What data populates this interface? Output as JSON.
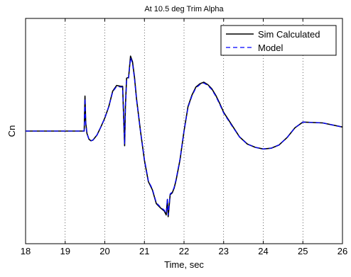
{
  "chart_data": {
    "type": "line",
    "title": "At 10.5 deg Trim Alpha",
    "xlabel": "Time, sec",
    "ylabel": "Cn",
    "xlim": [
      18,
      26
    ],
    "x_ticks": [
      18,
      19,
      20,
      21,
      22,
      23,
      24,
      25,
      26
    ],
    "x_tick_labels": [
      "18",
      "19",
      "20",
      "21",
      "22",
      "23",
      "24",
      "25",
      "26"
    ],
    "ylim": [
      -1,
      1
    ],
    "y_tick_labels": [],
    "grid": {
      "x": true,
      "y": false,
      "style": "dotted"
    },
    "legend": {
      "position": "top-right",
      "entries": [
        "Sim Calculated",
        "Model"
      ]
    },
    "series": [
      {
        "name": "Sim Calculated",
        "color": "#000000",
        "dash": "solid",
        "x": [
          18,
          19.48,
          19.5,
          19.52,
          19.55,
          19.6,
          19.65,
          19.7,
          19.8,
          19.9,
          20.0,
          20.1,
          20.2,
          20.3,
          20.4,
          20.45,
          20.48,
          20.5,
          20.52,
          20.55,
          20.6,
          20.65,
          20.7,
          20.75,
          20.8,
          20.9,
          21.0,
          21.1,
          21.2,
          21.3,
          21.4,
          21.5,
          21.55,
          21.58,
          21.6,
          21.62,
          21.65,
          21.7,
          21.75,
          21.8,
          21.9,
          22.0,
          22.1,
          22.2,
          22.3,
          22.4,
          22.5,
          22.6,
          22.7,
          22.8,
          22.9,
          23.0,
          23.2,
          23.4,
          23.6,
          23.8,
          24.0,
          24.2,
          24.4,
          24.6,
          24.8,
          25.0,
          25.5,
          26.0
        ],
        "y": [
          0.0,
          0.0,
          0.43,
          0.1,
          -0.03,
          -0.1,
          -0.12,
          -0.11,
          -0.05,
          0.05,
          0.16,
          0.3,
          0.49,
          0.56,
          0.55,
          0.55,
          0.1,
          -0.18,
          0.3,
          0.65,
          0.66,
          0.92,
          0.85,
          0.66,
          0.4,
          0.0,
          -0.36,
          -0.62,
          -0.72,
          -0.89,
          -0.94,
          -0.98,
          -1.03,
          -0.84,
          -1.05,
          -0.95,
          -0.78,
          -0.76,
          -0.7,
          -0.6,
          -0.35,
          0.0,
          0.3,
          0.44,
          0.54,
          0.58,
          0.6,
          0.57,
          0.52,
          0.44,
          0.34,
          0.23,
          0.08,
          -0.07,
          -0.16,
          -0.2,
          -0.22,
          -0.21,
          -0.17,
          -0.08,
          0.04,
          0.11,
          0.1,
          0.05
        ]
      },
      {
        "name": "Model",
        "color": "#0000ff",
        "dash": "dashed",
        "x": [
          18,
          19.48,
          19.5,
          19.52,
          19.55,
          19.6,
          19.65,
          19.7,
          19.8,
          19.9,
          20.0,
          20.1,
          20.2,
          20.3,
          20.4,
          20.45,
          20.48,
          20.5,
          20.52,
          20.55,
          20.6,
          20.65,
          20.7,
          20.75,
          20.8,
          20.9,
          21.0,
          21.1,
          21.2,
          21.3,
          21.4,
          21.5,
          21.55,
          21.58,
          21.6,
          21.62,
          21.65,
          21.7,
          21.75,
          21.8,
          21.9,
          22.0,
          22.1,
          22.2,
          22.3,
          22.4,
          22.5,
          22.6,
          22.7,
          22.8,
          22.9,
          23.0,
          23.2,
          23.4,
          23.6,
          23.8,
          24.0,
          24.2,
          24.4,
          24.6,
          24.8,
          25.0,
          25.5,
          26.0
        ],
        "y": [
          0.0,
          0.0,
          0.4,
          0.09,
          -0.03,
          -0.1,
          -0.12,
          -0.11,
          -0.05,
          0.05,
          0.16,
          0.3,
          0.48,
          0.55,
          0.54,
          0.54,
          0.09,
          -0.16,
          0.28,
          0.63,
          0.65,
          0.9,
          0.83,
          0.64,
          0.39,
          0.0,
          -0.35,
          -0.61,
          -0.71,
          -0.88,
          -0.93,
          -0.97,
          -1.01,
          -0.83,
          -1.03,
          -0.94,
          -0.77,
          -0.75,
          -0.69,
          -0.59,
          -0.34,
          0.0,
          0.29,
          0.43,
          0.53,
          0.57,
          0.59,
          0.56,
          0.51,
          0.43,
          0.33,
          0.22,
          0.07,
          -0.07,
          -0.16,
          -0.2,
          -0.22,
          -0.21,
          -0.17,
          -0.08,
          0.04,
          0.11,
          0.1,
          0.05
        ]
      }
    ]
  }
}
